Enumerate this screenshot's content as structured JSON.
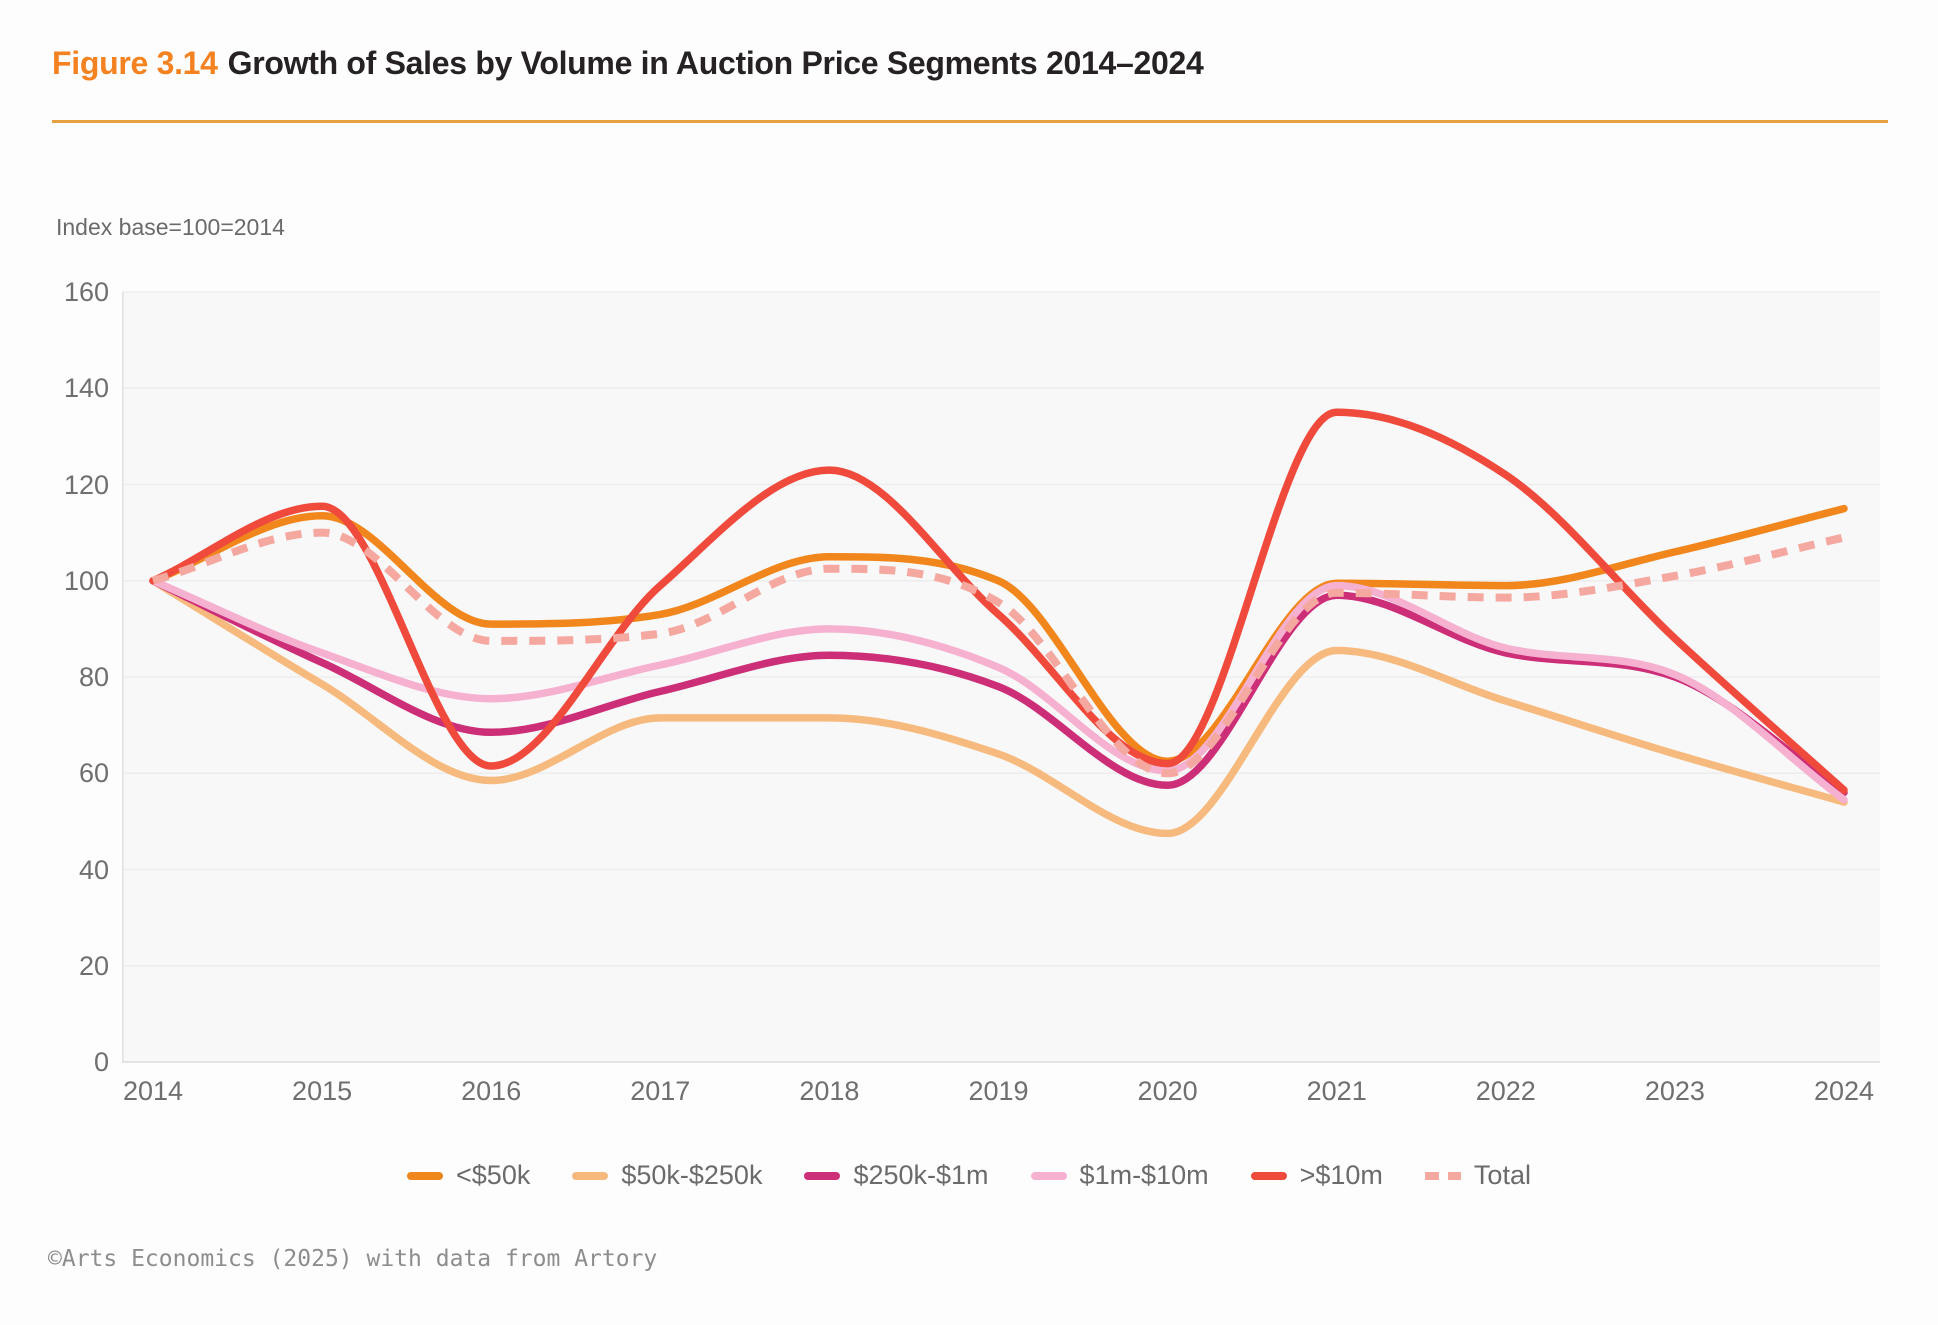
{
  "header": {
    "figure_label": "Figure 3.14",
    "title": "Growth of Sales by Volume in Auction Price Segments 2014–2024"
  },
  "subtitle": "Index base=100=2014",
  "footer": "©Arts Economics (2025) with data from Artory",
  "colors": {
    "figure_label_orange": "#F58220",
    "rule_orange": "#E4A33E",
    "title_text": "#262223",
    "axis_text_gray": "#6F6F6F",
    "plot_background": "#F8F8F8",
    "gridline": "#EDEDED",
    "axis_line": "#DCDCDC"
  },
  "chart_data": {
    "type": "line",
    "title": "Growth of Sales by Volume in Auction Price Segments 2014–2024",
    "subtitle": "Index base=100=2014",
    "x": [
      2014,
      2015,
      2016,
      2017,
      2018,
      2019,
      2020,
      2021,
      2022,
      2023,
      2024
    ],
    "series": [
      {
        "name": "<$50k",
        "color": "#F1861D",
        "dashed": false,
        "values": [
          100,
          113.5,
          91,
          93,
          105,
          100,
          62.5,
          99.5,
          99,
          106,
          115
        ]
      },
      {
        "name": "$50k-$250k",
        "color": "#F7BA7E",
        "dashed": false,
        "values": [
          100,
          78.5,
          58.5,
          71.5,
          71.5,
          64,
          47.5,
          85.5,
          75,
          64,
          54
        ]
      },
      {
        "name": "$250k-$1m",
        "color": "#CD2E78",
        "dashed": false,
        "values": [
          100,
          83,
          68.5,
          77,
          84.5,
          78,
          57.5,
          97,
          85,
          80,
          56
        ]
      },
      {
        "name": "$1m-$10m",
        "color": "#F6B1D1",
        "dashed": false,
        "values": [
          100,
          85,
          75.5,
          82.5,
          90,
          82,
          60.5,
          99,
          86,
          80.5,
          54.5
        ]
      },
      {
        "name": ">$10m",
        "color": "#EF4A3C",
        "dashed": false,
        "values": [
          100,
          115.5,
          61.5,
          99,
          123,
          93,
          62,
          135,
          122,
          88,
          56.5
        ]
      },
      {
        "name": "Total",
        "color": "#F4A8A0",
        "dashed": true,
        "values": [
          100,
          110,
          87.5,
          89,
          102.5,
          95.5,
          60,
          97.5,
          96.5,
          101,
          109
        ]
      }
    ],
    "xlabel": "",
    "ylabel": "",
    "ylim": [
      0,
      160
    ],
    "yticks": [
      0,
      20,
      40,
      60,
      80,
      100,
      120,
      140,
      160
    ],
    "grid": true,
    "legend_position": "bottom"
  }
}
